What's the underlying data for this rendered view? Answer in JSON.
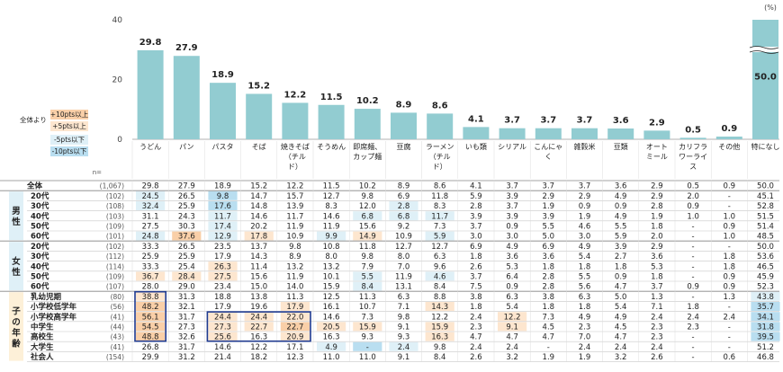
{
  "chart_data": {
    "type": "bar",
    "unit_label": "(%)",
    "y_ticks": [
      "0",
      "20",
      "40"
    ],
    "ylim": [
      0,
      40
    ],
    "n_header": "n=",
    "categories": [
      "うどん",
      "パン",
      "パスタ",
      "そば",
      "焼きそば（チルド）",
      "そうめん",
      "即席麺、カップ麺",
      "豆腐",
      "ラーメン（チルド）",
      "いも類",
      "シリアル",
      "こんにゃく",
      "雑穀米",
      "豆類",
      "オートミール",
      "カリフラワーライス",
      "その他",
      "特になし"
    ],
    "category_lines": [
      [
        "うどん"
      ],
      [
        "パン"
      ],
      [
        "パスタ"
      ],
      [
        "そば"
      ],
      [
        "焼きそば",
        "（チル",
        "ド）"
      ],
      [
        "そうめん"
      ],
      [
        "即席麺、",
        "カップ麺"
      ],
      [
        "豆腐"
      ],
      [
        "ラーメン",
        "（チル",
        "ド）"
      ],
      [
        "いも類"
      ],
      [
        "シリアル"
      ],
      [
        "こんにゃ",
        "く"
      ],
      [
        "雑穀米"
      ],
      [
        "豆類"
      ],
      [
        "オート",
        "ミール"
      ],
      [
        "カリフラ",
        "ワーライ",
        "ス"
      ],
      [
        "その他"
      ],
      [
        "特になし"
      ]
    ],
    "values": [
      29.8,
      27.9,
      18.9,
      15.2,
      12.2,
      11.5,
      10.2,
      8.9,
      8.6,
      4.1,
      3.7,
      3.7,
      3.7,
      3.6,
      2.9,
      0.5,
      0.9,
      50.0
    ],
    "value_labels": [
      "29.8",
      "27.9",
      "18.9",
      "15.2",
      "12.2",
      "11.5",
      "10.2",
      "8.9",
      "8.6",
      "4.1",
      "3.7",
      "3.7",
      "3.7",
      "3.6",
      "2.9",
      "0.5",
      "0.9",
      "50.0"
    ],
    "break_index": 17,
    "legend": {
      "base": "全体より",
      "items": [
        {
          "label": "+10pts以上",
          "color": "#f9cfa8"
        },
        {
          "label": "+5pts以上",
          "color": "#fde6cf"
        },
        {
          "label": "-5pts以下",
          "color": "#dff0f7"
        },
        {
          "label": "-10pts以下",
          "color": "#b9def0"
        }
      ]
    },
    "table": {
      "groups": [
        {
          "label": "男性",
          "start": 1,
          "end": 5
        },
        {
          "label": "女性",
          "start": 6,
          "end": 10
        },
        {
          "label": "子の年齢",
          "start": 11,
          "end": 17
        }
      ],
      "rows": [
        {
          "label": "全体",
          "n": "(1,067)",
          "cells": [
            "29.8",
            "27.9",
            "18.9",
            "15.2",
            "12.2",
            "11.5",
            "10.2",
            "8.9",
            "8.6",
            "4.1",
            "3.7",
            "3.7",
            "3.7",
            "3.6",
            "2.9",
            "0.5",
            "0.9",
            "50.0"
          ]
        },
        {
          "label": "20代",
          "n": "(102)",
          "cells": [
            "24.5",
            "26.5",
            "9.8",
            "14.7",
            "15.7",
            "12.7",
            "9.8",
            "6.9",
            "11.8",
            "5.9",
            "3.9",
            "2.9",
            "2.9",
            "4.9",
            "2.9",
            "2.0",
            "-",
            "45.1"
          ]
        },
        {
          "label": "30代",
          "n": "(108)",
          "cells": [
            "32.4",
            "25.9",
            "17.6",
            "14.8",
            "13.9",
            "8.3",
            "12.0",
            "2.8",
            "8.3",
            "2.8",
            "3.7",
            "1.9",
            "0.9",
            "0.9",
            "2.8",
            "0.9",
            "-",
            "52.8"
          ]
        },
        {
          "label": "40代",
          "n": "(103)",
          "cells": [
            "31.1",
            "24.3",
            "11.7",
            "14.6",
            "11.7",
            "14.6",
            "6.8",
            "6.8",
            "11.7",
            "3.9",
            "3.9",
            "3.9",
            "1.9",
            "4.9",
            "1.9",
            "1.0",
            "1.0",
            "51.5"
          ]
        },
        {
          "label": "50代",
          "n": "(109)",
          "cells": [
            "27.5",
            "30.3",
            "17.4",
            "20.2",
            "11.9",
            "11.9",
            "15.6",
            "9.2",
            "7.3",
            "3.7",
            "0.9",
            "5.5",
            "4.6",
            "5.5",
            "1.8",
            "-",
            "0.9",
            "51.4"
          ]
        },
        {
          "label": "60代",
          "n": "(101)",
          "cells": [
            "24.8",
            "37.6",
            "12.9",
            "17.8",
            "10.9",
            "9.9",
            "14.9",
            "10.9",
            "5.9",
            "3.0",
            "3.0",
            "5.0",
            "3.0",
            "5.9",
            "2.0",
            "-",
            "1.0",
            "48.5"
          ]
        },
        {
          "label": "20代",
          "n": "(102)",
          "cells": [
            "33.3",
            "26.5",
            "23.5",
            "13.7",
            "9.8",
            "10.8",
            "11.8",
            "12.7",
            "12.7",
            "6.9",
            "4.9",
            "6.9",
            "4.9",
            "3.9",
            "2.9",
            "-",
            "-",
            "50.0"
          ]
        },
        {
          "label": "30代",
          "n": "(112)",
          "cells": [
            "25.9",
            "25.9",
            "17.9",
            "14.3",
            "8.9",
            "8.0",
            "9.8",
            "8.0",
            "6.3",
            "1.8",
            "3.6",
            "3.6",
            "5.4",
            "2.7",
            "3.6",
            "-",
            "1.8",
            "53.6"
          ]
        },
        {
          "label": "40代",
          "n": "(114)",
          "cells": [
            "33.3",
            "25.4",
            "26.3",
            "11.4",
            "13.2",
            "13.2",
            "7.9",
            "7.0",
            "9.6",
            "2.6",
            "5.3",
            "1.8",
            "1.8",
            "1.8",
            "5.3",
            "-",
            "1.8",
            "46.5"
          ]
        },
        {
          "label": "50代",
          "n": "(109)",
          "cells": [
            "36.7",
            "28.4",
            "27.5",
            "15.6",
            "11.9",
            "10.1",
            "5.5",
            "11.9",
            "4.6",
            "3.7",
            "6.4",
            "2.8",
            "5.5",
            "0.9",
            "1.8",
            "-",
            "0.9",
            "45.9"
          ]
        },
        {
          "label": "60代",
          "n": "(107)",
          "cells": [
            "28.0",
            "29.0",
            "23.4",
            "15.0",
            "14.0",
            "15.9",
            "8.4",
            "13.1",
            "8.4",
            "7.5",
            "0.9",
            "2.8",
            "5.6",
            "4.7",
            "3.7",
            "0.9",
            "0.9",
            "52.3"
          ]
        },
        {
          "label": "乳幼児期",
          "n": "(80)",
          "cells": [
            "38.8",
            "31.3",
            "18.8",
            "13.8",
            "11.3",
            "12.5",
            "11.3",
            "6.3",
            "8.8",
            "3.8",
            "6.3",
            "3.8",
            "6.3",
            "5.0",
            "1.3",
            "-",
            "1.3",
            "43.8"
          ]
        },
        {
          "label": "小学校低学年",
          "n": "(56)",
          "cells": [
            "48.2",
            "32.1",
            "17.9",
            "19.6",
            "17.9",
            "16.1",
            "10.7",
            "7.1",
            "14.3",
            "1.8",
            "5.4",
            "1.8",
            "1.8",
            "5.4",
            "7.1",
            "1.8",
            "-",
            "35.7"
          ]
        },
        {
          "label": "小学校高学年",
          "n": "(41)",
          "cells": [
            "56.1",
            "31.7",
            "24.4",
            "24.4",
            "22.0",
            "14.6",
            "7.3",
            "9.8",
            "12.2",
            "2.4",
            "12.2",
            "7.3",
            "4.9",
            "4.9",
            "2.4",
            "2.4",
            "2.4",
            "34.1"
          ]
        },
        {
          "label": "中学生",
          "n": "(44)",
          "cells": [
            "54.5",
            "27.3",
            "27.3",
            "22.7",
            "22.7",
            "20.5",
            "15.9",
            "9.1",
            "15.9",
            "2.3",
            "9.1",
            "4.5",
            "2.3",
            "4.5",
            "2.3",
            "2.3",
            "-",
            "31.8"
          ]
        },
        {
          "label": "高校生",
          "n": "(43)",
          "cells": [
            "48.8",
            "32.6",
            "25.6",
            "16.3",
            "20.9",
            "16.3",
            "9.3",
            "9.3",
            "16.3",
            "4.7",
            "4.7",
            "4.7",
            "7.0",
            "4.7",
            "2.3",
            "-",
            "-",
            "39.5"
          ]
        },
        {
          "label": "大学生",
          "n": "(41)",
          "cells": [
            "26.8",
            "31.7",
            "14.6",
            "12.2",
            "17.1",
            "4.9",
            "-",
            "2.4",
            "9.8",
            "2.4",
            "2.4",
            "-",
            "2.4",
            "2.4",
            "2.4",
            "-",
            "-",
            "51.2"
          ]
        },
        {
          "label": "社会人",
          "n": "(154)",
          "cells": [
            "29.9",
            "31.2",
            "21.4",
            "18.2",
            "12.3",
            "11.0",
            "11.0",
            "9.1",
            "8.4",
            "2.6",
            "3.2",
            "1.9",
            "1.9",
            "3.2",
            "2.6",
            "-",
            "0.6",
            "46.8"
          ]
        }
      ],
      "highlights": [
        {
          "r": 2,
          "c": 0,
          "k": "ml"
        },
        {
          "r": 2,
          "c": 2,
          "k": "mh"
        },
        {
          "r": 4,
          "c": 2,
          "k": "ml"
        },
        {
          "r": 5,
          "c": 0,
          "k": "ml"
        },
        {
          "r": 5,
          "c": 2,
          "k": "ml"
        },
        {
          "r": 3,
          "c": 8,
          "k": "ml"
        },
        {
          "r": 5,
          "c": 5,
          "k": "ml"
        },
        {
          "r": 5,
          "c": 8,
          "k": "ml"
        },
        {
          "r": 5,
          "c": 1,
          "k": "p10"
        },
        {
          "r": 5,
          "c": 3,
          "k": "p5"
        },
        {
          "r": 5,
          "c": 6,
          "k": "p5"
        },
        {
          "r": 3,
          "c": 7,
          "k": "ml"
        },
        {
          "r": 3,
          "c": 6,
          "k": "ml"
        },
        {
          "r": 2,
          "c": 7,
          "k": "ml"
        },
        {
          "r": 9,
          "c": 0,
          "k": "p5"
        },
        {
          "r": 9,
          "c": 2,
          "k": "p5"
        },
        {
          "r": 9,
          "c": 1,
          "k": "p5"
        },
        {
          "r": 9,
          "c": 6,
          "k": "ml"
        },
        {
          "r": 9,
          "c": 8,
          "k": "ml"
        },
        {
          "r": 10,
          "c": 6,
          "k": "ml"
        },
        {
          "r": 1,
          "c": 2,
          "k": "mh"
        },
        {
          "r": 1,
          "c": 0,
          "k": "ml"
        },
        {
          "r": 3,
          "c": 2,
          "k": "ml"
        },
        {
          "r": 8,
          "c": 2,
          "k": "p5"
        },
        {
          "r": 11,
          "c": 0,
          "k": "p5"
        },
        {
          "r": 12,
          "c": 0,
          "k": "p10"
        },
        {
          "r": 13,
          "c": 0,
          "k": "p10"
        },
        {
          "r": 14,
          "c": 0,
          "k": "p10"
        },
        {
          "r": 15,
          "c": 0,
          "k": "p10"
        },
        {
          "r": 12,
          "c": 4,
          "k": "p5"
        },
        {
          "r": 13,
          "c": 2,
          "k": "p5"
        },
        {
          "r": 13,
          "c": 3,
          "k": "p5"
        },
        {
          "r": 13,
          "c": 4,
          "k": "p5"
        },
        {
          "r": 14,
          "c": 2,
          "k": "p5"
        },
        {
          "r": 14,
          "c": 3,
          "k": "p5"
        },
        {
          "r": 14,
          "c": 4,
          "k": "p10"
        },
        {
          "r": 14,
          "c": 5,
          "k": "p5"
        },
        {
          "r": 15,
          "c": 2,
          "k": "p5"
        },
        {
          "r": 15,
          "c": 4,
          "k": "p5"
        },
        {
          "r": 12,
          "c": 8,
          "k": "p5"
        },
        {
          "r": 13,
          "c": 10,
          "k": "p5"
        },
        {
          "r": 14,
          "c": 6,
          "k": "p5"
        },
        {
          "r": 14,
          "c": 8,
          "k": "p5"
        },
        {
          "r": 14,
          "c": 10,
          "k": "p5"
        },
        {
          "r": 15,
          "c": 8,
          "k": "p5"
        },
        {
          "r": 11,
          "c": 17,
          "k": "ml"
        },
        {
          "r": 12,
          "c": 17,
          "k": "mh"
        },
        {
          "r": 13,
          "c": 17,
          "k": "mh"
        },
        {
          "r": 14,
          "c": 17,
          "k": "mh"
        },
        {
          "r": 15,
          "c": 17,
          "k": "mh"
        },
        {
          "r": 16,
          "c": 5,
          "k": "ml"
        },
        {
          "r": 16,
          "c": 6,
          "k": "mh"
        },
        {
          "r": 16,
          "c": 7,
          "k": "ml"
        }
      ]
    }
  }
}
